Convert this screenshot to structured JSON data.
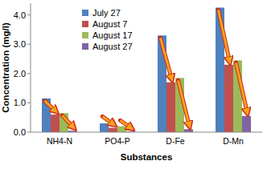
{
  "chart_data": {
    "type": "bar",
    "x_label": "Substances",
    "y_label": "Concentration (mg/l)",
    "categories": [
      "NH4-N",
      "PO4-P",
      "D-Fe",
      "D-Mn"
    ],
    "series": [
      {
        "name": "July 27",
        "color": "#4f81bd",
        "values": [
          1.15,
          0.3,
          3.3,
          4.25
        ]
      },
      {
        "name": "August 7",
        "color": "#c0504d",
        "values": [
          0.6,
          0.15,
          1.7,
          2.3
        ]
      },
      {
        "name": "August 17",
        "color": "#9bbb59",
        "values": [
          0.65,
          0.2,
          1.85,
          2.45
        ]
      },
      {
        "name": "August 27",
        "color": "#8064a2",
        "values": [
          0.05,
          0.02,
          0.1,
          0.55
        ]
      }
    ],
    "ylim": [
      0,
      4.4
    ],
    "yticks": [
      {
        "value": 0,
        "label": "0.0"
      },
      {
        "value": 1,
        "label": "1.0"
      },
      {
        "value": 2,
        "label": "2.0"
      },
      {
        "value": 3,
        "label": "3.0"
      },
      {
        "value": 4,
        "label": "4.0"
      }
    ],
    "grid": false,
    "legend": "top"
  }
}
